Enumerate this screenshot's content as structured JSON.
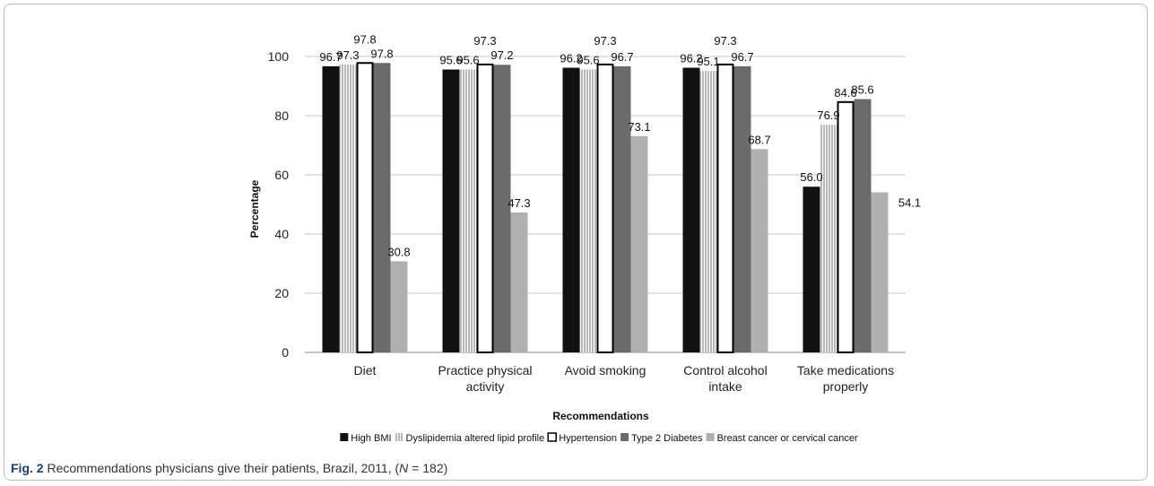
{
  "chart_data": {
    "type": "bar",
    "title": "",
    "xlabel": "Recommendations",
    "ylabel": "Percentage",
    "ylim": [
      0,
      110
    ],
    "yticks": [
      0,
      20,
      40,
      60,
      80,
      100
    ],
    "grid": true,
    "legend_position": "bottom",
    "categories": [
      [
        "Diet"
      ],
      [
        "Practice physical",
        "activity"
      ],
      [
        "Avoid smoking"
      ],
      [
        "Control alcohol",
        "intake"
      ],
      [
        "Take medications",
        "properly"
      ]
    ],
    "series": [
      {
        "name": "High BMI",
        "color": "#111111",
        "pattern": "solid",
        "values": [
          96.7,
          95.6,
          96.2,
          96.2,
          56.0
        ],
        "labels": [
          "96.7",
          "95.6",
          "96.2",
          "96.2",
          "56.0"
        ]
      },
      {
        "name": "Dyslipidemia altered lipid profile",
        "color": "#c8c8c8",
        "pattern": "stripes",
        "values": [
          97.3,
          95.6,
          95.6,
          95.1,
          76.9
        ],
        "labels": [
          "97.3",
          "95.6",
          "95.6",
          "95.1",
          "76.9"
        ]
      },
      {
        "name": "Hypertension",
        "color": "#ffffff",
        "pattern": "outline",
        "values": [
          97.8,
          97.3,
          97.3,
          97.3,
          84.6
        ],
        "labels": [
          "97.8",
          "97.3",
          "97.3",
          "97.3",
          "84.6"
        ]
      },
      {
        "name": "Type 2 Diabetes",
        "color": "#6b6b6b",
        "pattern": "solid",
        "values": [
          97.8,
          97.2,
          96.7,
          96.7,
          85.6
        ],
        "labels": [
          "97.8",
          "97.2",
          "96.7",
          "96.7",
          "85.6"
        ]
      },
      {
        "name": "Breast cancer or cervical cancer",
        "color": "#b0b0b0",
        "pattern": "solid",
        "values": [
          30.8,
          47.3,
          73.1,
          68.7,
          54.1
        ],
        "labels": [
          "30.8",
          "47.3",
          "73.1",
          "68.7",
          "54.1"
        ]
      }
    ]
  },
  "caption": {
    "label": "Fig. 2",
    "text_before": " Recommendations physicians give their patients, Brazil, 2011, (",
    "n_symbol": "N",
    "text_after": " = 182)"
  }
}
